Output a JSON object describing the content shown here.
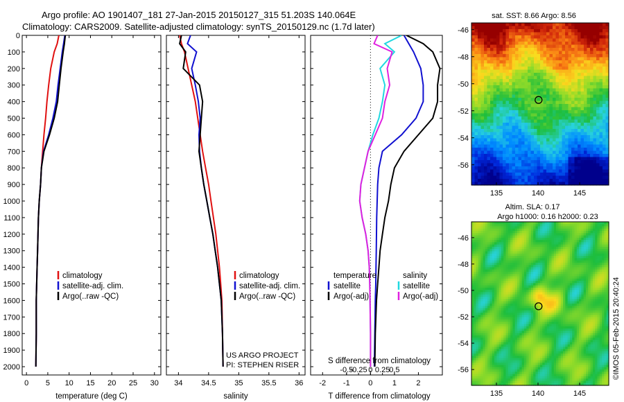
{
  "title": {
    "line1": "Argo profile: AO 1901407_181 27-Jan-2015 20150127_315 51.203S 140.064E",
    "line2": "Climatology: CARS2009. Satellite-adjusted climatology: synTS_20150129.nc (1.7d later)"
  },
  "colors": {
    "climatology": "#e01010",
    "satellite": "#1010d0",
    "argo": "#000000",
    "s_sat": "#20d8e0",
    "s_argo": "#e020e0"
  },
  "chart_data": [
    {
      "type": "line",
      "id": "temperature",
      "xlabel": "temperature (deg C)",
      "xlim": [
        -1,
        31.5
      ],
      "xticks": [
        0,
        5,
        10,
        15,
        20,
        25,
        30
      ],
      "ylim": [
        0,
        2050
      ],
      "yticks": [
        0,
        100,
        200,
        300,
        400,
        500,
        600,
        700,
        800,
        900,
        1000,
        1100,
        1200,
        1300,
        1400,
        1500,
        1600,
        1700,
        1800,
        1900,
        2000
      ],
      "legend": [
        "climatology",
        "satellite-adj. clim.",
        "Argo(..raw -QC)"
      ],
      "series": [
        {
          "name": "climatology",
          "color": "climatology",
          "x": [
            7.6,
            7.2,
            6.5,
            5.7,
            5.2,
            4.8,
            4.5,
            4.1,
            3.8,
            3.5,
            3.3,
            3.0,
            2.8,
            2.7,
            2.6,
            2.5,
            2.4,
            2.3,
            2.3,
            2.2
          ],
          "y": [
            0,
            50,
            100,
            200,
            300,
            400,
            500,
            600,
            700,
            800,
            900,
            1000,
            1100,
            1200,
            1300,
            1400,
            1500,
            1600,
            1800,
            2000
          ]
        },
        {
          "name": "satellite-adj. clim.",
          "color": "satellite",
          "x": [
            9.0,
            8.7,
            8.4,
            7.9,
            7.4,
            7.0,
            6.2,
            5.2,
            4.0,
            3.5,
            3.3,
            3.0,
            2.8,
            2.7,
            2.6,
            2.5,
            2.4,
            2.3,
            2.3,
            2.2
          ],
          "y": [
            0,
            50,
            100,
            200,
            300,
            400,
            500,
            600,
            700,
            800,
            900,
            1000,
            1100,
            1200,
            1300,
            1400,
            1500,
            1600,
            1800,
            2000
          ]
        },
        {
          "name": "Argo(..raw -QC)",
          "color": "argo",
          "x": [
            9.1,
            8.9,
            8.6,
            8.1,
            7.7,
            7.3,
            6.5,
            5.4,
            4.1,
            3.5,
            3.3,
            3.0,
            2.8,
            2.7,
            2.6,
            2.5,
            2.4,
            2.3,
            2.3,
            2.2
          ],
          "y": [
            0,
            50,
            100,
            200,
            300,
            400,
            500,
            600,
            700,
            800,
            900,
            1000,
            1100,
            1200,
            1300,
            1400,
            1500,
            1600,
            1800,
            2000
          ]
        }
      ]
    },
    {
      "type": "line",
      "id": "salinity",
      "xlabel": "salinity",
      "xlim": [
        33.8,
        36.1
      ],
      "xticks": [
        34,
        34.5,
        35,
        35.5,
        36
      ],
      "xtick_labels": [
        "34",
        "34.5",
        "35",
        "35.5",
        "36"
      ],
      "ylim": [
        0,
        2050
      ],
      "legend": [
        "climatology",
        "satellite-adj. clim.",
        "Argo(..raw -QC)"
      ],
      "footer": [
        "US ARGO PROJECT",
        "PI: STEPHEN RISER"
      ],
      "series": [
        {
          "name": "climatology",
          "color": "climatology",
          "x": [
            34.02,
            34.05,
            34.1,
            34.16,
            34.22,
            34.28,
            34.32,
            34.36,
            34.4,
            34.45,
            34.5,
            34.54,
            34.58,
            34.62,
            34.65,
            34.68,
            34.7,
            34.72,
            34.73,
            34.74
          ],
          "y": [
            0,
            50,
            100,
            200,
            300,
            400,
            500,
            600,
            700,
            800,
            900,
            1000,
            1100,
            1200,
            1300,
            1400,
            1500,
            1600,
            1800,
            2000
          ]
        },
        {
          "name": "satellite-adj. clim.",
          "color": "satellite",
          "x": [
            34.2,
            34.15,
            34.3,
            34.22,
            34.28,
            34.33,
            34.36,
            34.34,
            34.35,
            34.38,
            34.42,
            34.47,
            34.52,
            34.57,
            34.61,
            34.65,
            34.68,
            34.71,
            34.73,
            34.74
          ],
          "y": [
            0,
            50,
            100,
            200,
            300,
            400,
            500,
            600,
            700,
            800,
            900,
            1000,
            1100,
            1200,
            1300,
            1400,
            1500,
            1600,
            1800,
            2000
          ]
        },
        {
          "name": "Argo(..raw -QC)",
          "color": "argo",
          "x": [
            34.05,
            34.02,
            34.12,
            34.08,
            34.35,
            34.4,
            34.38,
            34.36,
            34.34,
            34.38,
            34.42,
            34.47,
            34.52,
            34.57,
            34.61,
            34.65,
            34.68,
            34.71,
            34.73,
            34.74
          ],
          "y": [
            0,
            50,
            100,
            200,
            300,
            400,
            500,
            600,
            700,
            800,
            900,
            1000,
            1100,
            1200,
            1300,
            1400,
            1500,
            1600,
            1800,
            2000
          ]
        }
      ]
    },
    {
      "type": "line",
      "id": "difference",
      "xlabel": "T difference from climatology",
      "toplabel": "S difference from climatology",
      "xlim": [
        -2.5,
        3.0
      ],
      "xticks": [
        -2,
        -1,
        0,
        1,
        2
      ],
      "sticks": [
        -0.5,
        -0.25,
        0,
        0.25,
        0.5
      ],
      "stick_labels": [
        "-0.5",
        "-0.25",
        "0",
        "0.25",
        "0.5"
      ],
      "ylim": [
        0,
        2050
      ],
      "legend_temperature": [
        "temperature",
        "satellite",
        "Argo(-adj)"
      ],
      "legend_salinity": [
        "salinity",
        "satellite",
        "Argo(-adj)"
      ],
      "series": [
        {
          "name": "temperature satellite",
          "color": "satellite",
          "x": [
            1.4,
            1.6,
            1.8,
            2.1,
            2.2,
            2.2,
            1.9,
            1.3,
            0.5,
            0.35,
            0.3,
            0.28,
            0.26,
            0.25,
            0.24,
            0.23,
            0.22,
            0.2,
            0.18,
            0.16
          ],
          "y": [
            0,
            50,
            100,
            200,
            300,
            400,
            500,
            600,
            700,
            800,
            900,
            1000,
            1100,
            1200,
            1300,
            1400,
            1500,
            1600,
            1800,
            2000
          ]
        },
        {
          "name": "temperature Argo(-adj)",
          "color": "argo",
          "x": [
            1.5,
            2.2,
            2.6,
            2.9,
            2.8,
            2.8,
            2.6,
            2.0,
            1.4,
            1.0,
            0.85,
            0.75,
            0.6,
            0.5,
            0.4,
            0.35,
            0.3,
            0.25,
            0.2,
            0.18
          ],
          "y": [
            0,
            50,
            100,
            200,
            300,
            400,
            500,
            600,
            700,
            800,
            900,
            1000,
            1100,
            1200,
            1300,
            1400,
            1500,
            1600,
            1800,
            2000
          ]
        },
        {
          "name": "salinity satellite",
          "color": "s_sat",
          "x": [
            1.3,
            0.6,
            1.0,
            0.4,
            0.6,
            0.5,
            0.35,
            0.1,
            -0.1,
            -0.25,
            -0.4,
            -0.45,
            -0.35,
            -0.2,
            -0.1,
            -0.05,
            -0.03,
            -0.02,
            0.0,
            0.0
          ],
          "y": [
            0,
            50,
            100,
            200,
            300,
            400,
            500,
            600,
            700,
            800,
            900,
            1000,
            1100,
            1200,
            1300,
            1400,
            1500,
            1600,
            1800,
            2000
          ]
        },
        {
          "name": "salinity Argo(-adj)",
          "color": "s_argo",
          "x": [
            0.3,
            0.15,
            0.9,
            0.7,
            0.8,
            0.6,
            0.5,
            0.2,
            -0.1,
            -0.25,
            -0.4,
            -0.45,
            -0.35,
            -0.2,
            -0.1,
            -0.05,
            -0.03,
            -0.02,
            0.0,
            0.0
          ],
          "y": [
            0,
            50,
            100,
            200,
            300,
            400,
            500,
            600,
            700,
            800,
            900,
            1000,
            1100,
            1200,
            1300,
            1400,
            1500,
            1600,
            1800,
            2000
          ]
        }
      ]
    },
    {
      "type": "heatmap",
      "id": "sst-map",
      "title": "sat. SST: 8.66 Argo: 8.56",
      "xlim": [
        132,
        148.5
      ],
      "ylim": [
        -57.5,
        -45.5
      ],
      "xticks": [
        135,
        140,
        145
      ],
      "yticks": [
        -46,
        -48,
        -50,
        -52,
        -54,
        -56
      ],
      "marker": [
        140.064,
        -51.203
      ]
    },
    {
      "type": "heatmap",
      "id": "sla-map",
      "title_line1": "Altim. SLA: 0.17",
      "title_line2": "Argo h1000: 0.16 h2000: 0.23",
      "xlim": [
        132,
        148.5
      ],
      "ylim": [
        -57.2,
        -44.8
      ],
      "xticks": [
        135,
        140,
        145
      ],
      "yticks": [
        -46,
        -48,
        -50,
        -52,
        -54,
        -56
      ],
      "marker": [
        140.064,
        -51.203
      ]
    }
  ],
  "credit": "©IMOS 05-Feb-2015 20:40:24"
}
